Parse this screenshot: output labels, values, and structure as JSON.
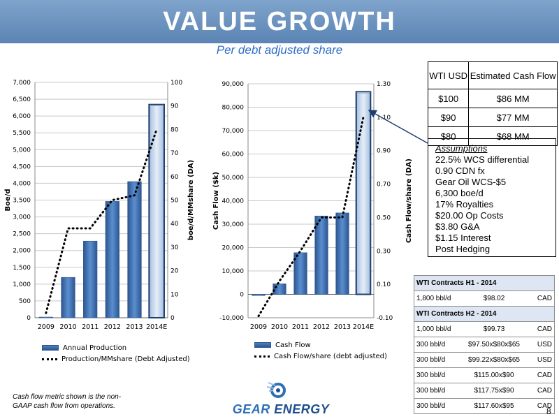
{
  "title": "VALUE GROWTH",
  "subtitle": "Per debt adjusted share",
  "chart_data": [
    {
      "type": "bar",
      "categories": [
        "2009",
        "2010",
        "2011",
        "2012",
        "2013",
        "2014E"
      ],
      "series": [
        {
          "name": "Annual Production",
          "type": "bar",
          "axis": "left",
          "values": [
            20,
            1200,
            2280,
            3460,
            4050,
            6300
          ]
        },
        {
          "name": "Production/MMshare (Debt Adjusted)",
          "type": "line",
          "style": "dotted",
          "axis": "right",
          "values": [
            2,
            38,
            38,
            50,
            52,
            80
          ]
        }
      ],
      "highlight_category": "2014E",
      "ylabel": "Boe/d",
      "y2label": "boe/d/MMshare (DA)",
      "ylim": [
        0,
        7000
      ],
      "y2lim": [
        0,
        100
      ],
      "yticks": [
        "0",
        "500",
        "1,000",
        "1,500",
        "2,000",
        "2,500",
        "3,000",
        "3,500",
        "4,000",
        "4,500",
        "5,000",
        "5,500",
        "6,000",
        "6,500",
        "7,000"
      ],
      "y2ticks": [
        "0",
        "10",
        "20",
        "30",
        "40",
        "50",
        "60",
        "70",
        "80",
        "90",
        "100"
      ],
      "grid": true,
      "legend": "bottom"
    },
    {
      "type": "bar",
      "categories": [
        "2009",
        "2010",
        "2011",
        "2012",
        "2013",
        "2014E"
      ],
      "series": [
        {
          "name": "Cash Flow",
          "type": "bar",
          "axis": "left",
          "values": [
            -500,
            4500,
            17800,
            33500,
            34800,
            86000
          ]
        },
        {
          "name": "Cash Flow/share (debt adjusted)",
          "type": "line",
          "style": "dotted",
          "axis": "right",
          "values": [
            -0.09,
            0.12,
            0.3,
            0.5,
            0.5,
            1.1
          ]
        }
      ],
      "highlight_category": "2014E",
      "ylabel": "Cash Flow ($k)",
      "y2label": "Cash Flow/share (DA)",
      "ylim": [
        -10000,
        90000
      ],
      "y2lim": [
        -0.1,
        1.3
      ],
      "yticks": [
        "-10,000",
        "0",
        "10,000",
        "20,000",
        "30,000",
        "40,000",
        "50,000",
        "60,000",
        "70,000",
        "80,000",
        "90,000"
      ],
      "y2ticks": [
        "-0.10",
        "0.10",
        "0.30",
        "0.50",
        "0.70",
        "0.90",
        "1.10",
        "1.30"
      ],
      "grid": true,
      "legend": "bottom"
    }
  ],
  "wti_table": {
    "headers": [
      "WTI USD",
      "Estimated Cash Flow"
    ],
    "rows": [
      [
        "$100",
        "$86 MM"
      ],
      [
        "$90",
        "$77 MM"
      ],
      [
        "$80",
        "$68 MM"
      ]
    ]
  },
  "assumptions": {
    "heading": "Assumptions",
    "items": [
      "22.5% WCS differential",
      "0.90 CDN fx",
      "Gear Oil WCS-$5",
      "6,300 boe/d",
      "17% Royalties",
      "$20.00 Op Costs",
      "$3.80 G&A",
      "$1.15 Interest",
      "Post Hedging"
    ]
  },
  "contracts": {
    "h1_title": "WTI Contracts H1 - 2014",
    "h1_rows": [
      [
        "1,800 bbl/d",
        "$98.02",
        "CAD"
      ]
    ],
    "h2_title": "WTI Contracts H2 - 2014",
    "h2_rows": [
      [
        "1,000 bbl/d",
        "$99.73",
        "CAD"
      ],
      [
        "300 bbl/d",
        "$97.50x$80x$65",
        "USD"
      ],
      [
        "300 bbl/d",
        "$99.22x$80x$65",
        "USD"
      ],
      [
        "300 bbl/d",
        "$115.00x$90",
        "CAD"
      ],
      [
        "300 bbl/d",
        "$117.75x$90",
        "CAD"
      ],
      [
        "300 bbl/d",
        "$117.60x$95",
        "CAD"
      ]
    ]
  },
  "footnote": "Cash flow metric shown is the non-GAAP cash flow from operations.",
  "logo": {
    "word1": "GEAR",
    "word2": "ENERGY"
  },
  "page_number": "8",
  "colors": {
    "title_bar": "#6a92c0",
    "bar": "#4f81bd",
    "highlight_bar": "#c9d9ee",
    "subtitle": "#2f6fc6",
    "logo": "#1d4f8f"
  }
}
